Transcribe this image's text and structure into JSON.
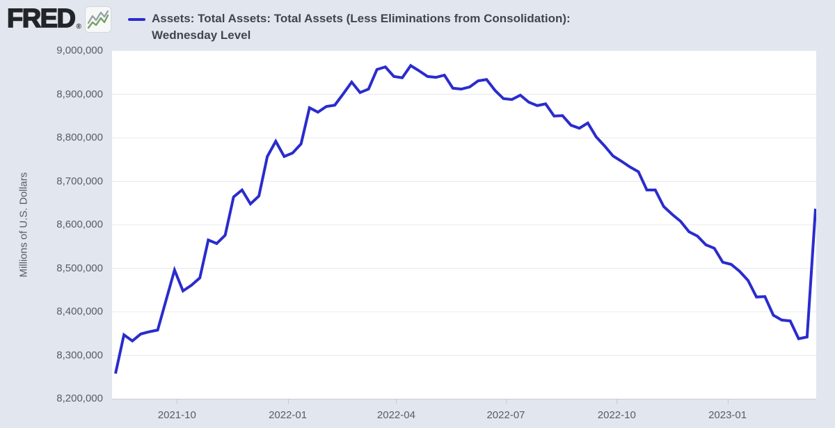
{
  "header": {
    "logo_text": "FRED",
    "registered_mark": "®",
    "logo_icon": "sparkline-chart-icon",
    "title_line1": "Assets: Total Assets: Total Assets (Less Eliminations from Consolidation):",
    "title_line2": "Wednesday Level"
  },
  "axis": {
    "ylabel": "Millions of U.S. Dollars"
  },
  "colors": {
    "background": "#e2e6ee",
    "plot_background": "#ffffff",
    "series_line": "#2a2ccd",
    "gridline": "#e7e8ea",
    "axis_line": "#c9cdd4",
    "tick_text": "#575d66",
    "title_text": "#404650"
  },
  "chart_data": {
    "type": "line",
    "title": "Assets: Total Assets: Total Assets (Less Eliminations from Consolidation): Wednesday Level",
    "ylabel": "Millions of U.S. Dollars",
    "xlabel": "",
    "ylim": [
      8200000,
      9000000
    ],
    "grid": true,
    "legend_position": "top",
    "line_color": "#2a2ccd",
    "frequency": "weekly (Wednesday level)",
    "start_date": "2021-08-11",
    "end_date": "2023-03-15",
    "y_ticks": [
      {
        "value": 9000000,
        "label": "9,000,000"
      },
      {
        "value": 8900000,
        "label": "8,900,000"
      },
      {
        "value": 8800000,
        "label": "8,800,000"
      },
      {
        "value": 8700000,
        "label": "8,700,000"
      },
      {
        "value": 8600000,
        "label": "8,600,000"
      },
      {
        "value": 8500000,
        "label": "8,500,000"
      },
      {
        "value": 8400000,
        "label": "8,400,000"
      },
      {
        "value": 8300000,
        "label": "8,300,000"
      },
      {
        "value": 8200000,
        "label": "8,200,000"
      }
    ],
    "x_ticks": [
      {
        "date": "2021-10-01",
        "label": "2021-10"
      },
      {
        "date": "2022-01-01",
        "label": "2022-01"
      },
      {
        "date": "2022-04-01",
        "label": "2022-04"
      },
      {
        "date": "2022-07-01",
        "label": "2022-07"
      },
      {
        "date": "2022-10-01",
        "label": "2022-10"
      },
      {
        "date": "2023-01-01",
        "label": "2023-01"
      }
    ],
    "values": [
      8258000,
      8347000,
      8333000,
      8349000,
      8354000,
      8358000,
      8427000,
      8496000,
      8448000,
      8461000,
      8478000,
      8565000,
      8557000,
      8576000,
      8664000,
      8680000,
      8648000,
      8666000,
      8757000,
      8792000,
      8757000,
      8765000,
      8786000,
      8869000,
      8859000,
      8872000,
      8875000,
      8901000,
      8928000,
      8904000,
      8912000,
      8957000,
      8963000,
      8941000,
      8938000,
      8966000,
      8954000,
      8941000,
      8939000,
      8944000,
      8914000,
      8912000,
      8917000,
      8931000,
      8934000,
      8909000,
      8890000,
      8888000,
      8898000,
      8882000,
      8874000,
      8878000,
      8850000,
      8851000,
      8829000,
      8822000,
      8834000,
      8802000,
      8781000,
      8758000,
      8746000,
      8733000,
      8722000,
      8680000,
      8680000,
      8642000,
      8624000,
      8608000,
      8584000,
      8574000,
      8554000,
      8546000,
      8514000,
      8509000,
      8493000,
      8472000,
      8434000,
      8435000,
      8392000,
      8381000,
      8379000,
      8338000,
      8342000,
      8637000
    ]
  }
}
